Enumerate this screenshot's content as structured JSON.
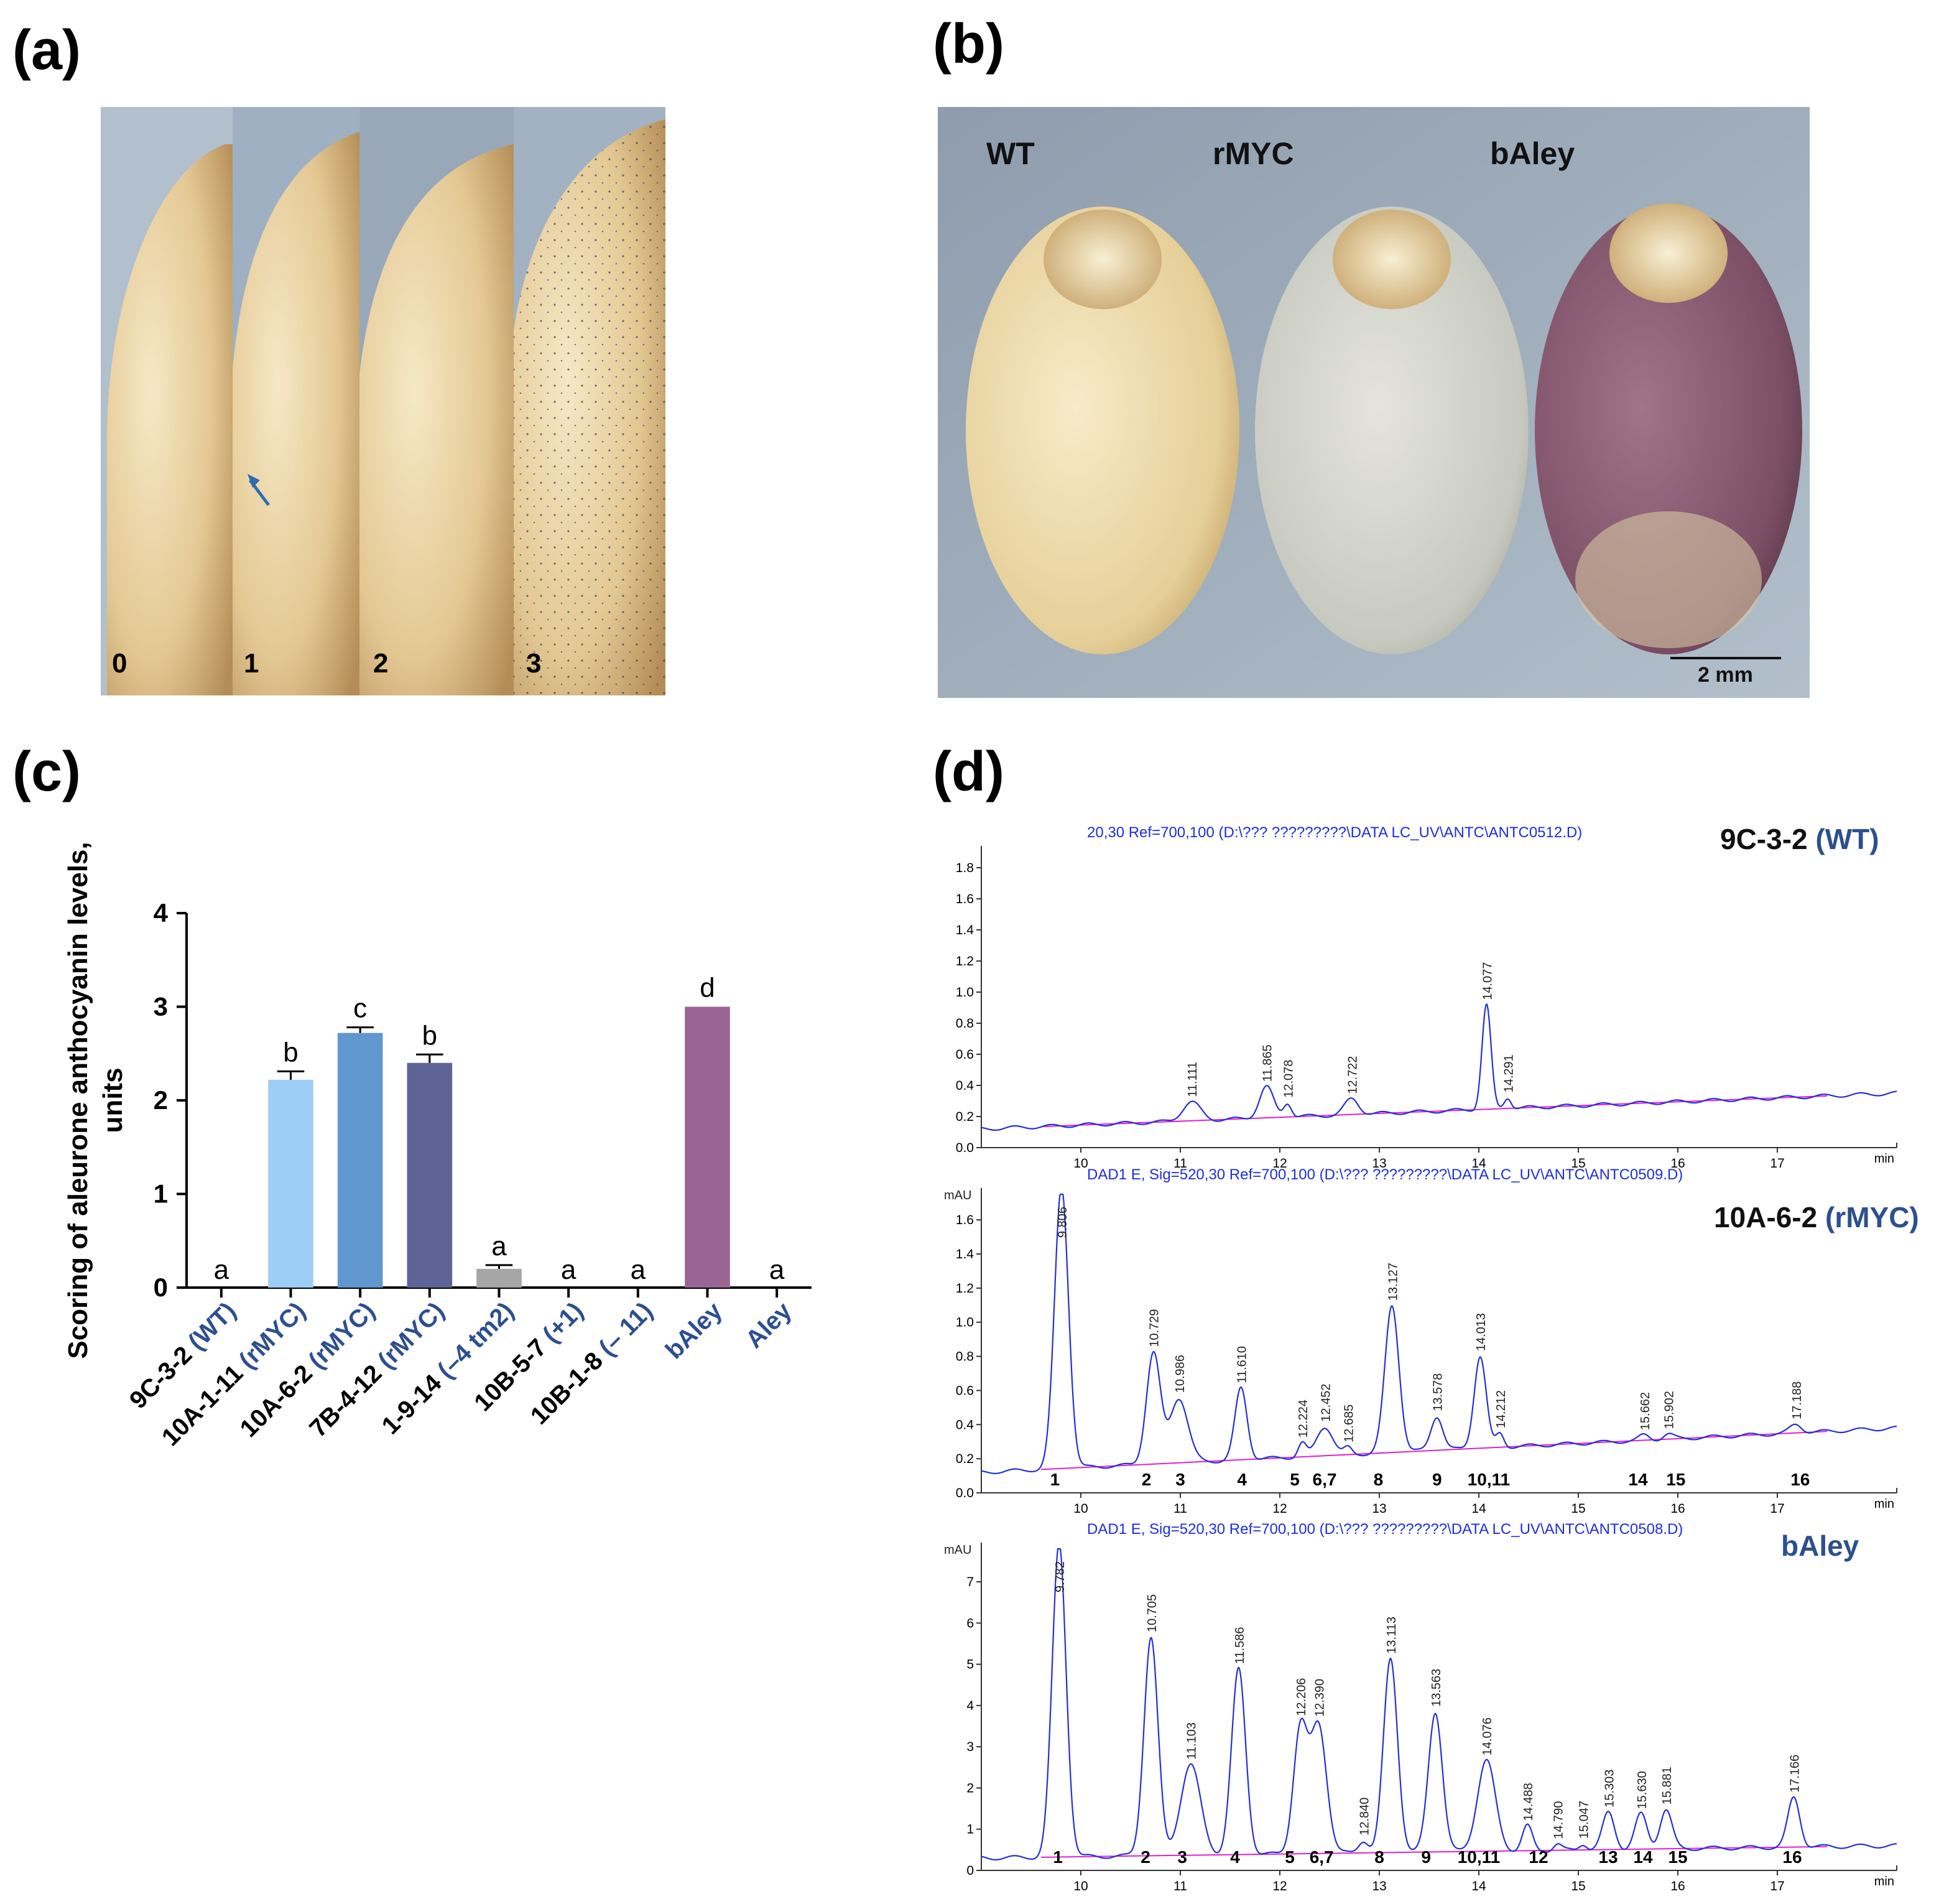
{
  "panels": {
    "a": "(a)",
    "b": "(b)",
    "c": "(c)",
    "d": "(d)"
  },
  "panel_a": {
    "strip_labels": [
      "0",
      "1",
      "2",
      "3"
    ]
  },
  "panel_b": {
    "seed_labels": [
      "WT",
      "rMYC",
      "bAley"
    ],
    "scale_label": "2 mm"
  },
  "chart_data": [
    {
      "type": "bar",
      "panel": "c",
      "title": "",
      "ylabel": "Scoring of aleurone anthocyanin levels, units",
      "ylim": [
        0,
        4
      ],
      "yticks": [
        "0",
        "1",
        "2",
        "3",
        "4"
      ],
      "categories": [
        {
          "id": "9C-3-2",
          "tag": "(WT)"
        },
        {
          "id": "10A-1-11",
          "tag": "(rMYC)"
        },
        {
          "id": "10A-6-2",
          "tag": "(rMYC)"
        },
        {
          "id": "7B-4-12",
          "tag": "(rMYC)"
        },
        {
          "id": "1-9-14",
          "tag": "(–4 tm2)"
        },
        {
          "id": "10B-5-7",
          "tag": "(+1)"
        },
        {
          "id": "10B-1-8",
          "tag": "(– 11)"
        },
        {
          "id": "",
          "tag": "bAley"
        },
        {
          "id": "",
          "tag": "Aley"
        }
      ],
      "values": [
        0,
        2.22,
        2.72,
        2.4,
        0.2,
        0,
        0,
        3.0,
        0
      ],
      "errors": [
        0,
        0.09,
        0.06,
        0.09,
        0.04,
        0,
        0,
        0,
        0
      ],
      "letters": [
        "a",
        "b",
        "c",
        "b",
        "a",
        "a",
        "a",
        "d",
        "a"
      ],
      "colors": [
        "#ffffff",
        "#9ecdf5",
        "#6197cf",
        "#5f6497",
        "#a6a6a6",
        "#ffffff",
        "#ffffff",
        "#9a6595",
        "#ffffff"
      ]
    },
    {
      "type": "line",
      "panel": "d",
      "header": "20,30 Ref=700,100 (D:\\??? ?????????\\DATA  LC_UV\\ANTC\\ANTC0512.D)",
      "sample": "9C-3-2",
      "sample_tag": "(WT)",
      "unit": "",
      "xlim": [
        9,
        18.2
      ],
      "ylim": [
        0,
        1.9
      ],
      "xticks": [
        "10",
        "11",
        "12",
        "13",
        "14",
        "15",
        "16",
        "17",
        "min"
      ],
      "yticks": [
        "0.0",
        "0.2",
        "0.4",
        "0.6",
        "0.8",
        "1.0",
        "1.2",
        "1.4",
        "1.6",
        "1.8"
      ],
      "baseline": [
        [
          9,
          0.12
        ],
        [
          18.2,
          0.35
        ]
      ],
      "peaks": [
        {
          "t": 11.111,
          "h": 0.12,
          "w": 0.09
        },
        {
          "t": 11.865,
          "h": 0.2,
          "w": 0.07
        },
        {
          "t": 12.078,
          "h": 0.09,
          "w": 0.04
        },
        {
          "t": 12.722,
          "h": 0.1,
          "w": 0.07
        },
        {
          "t": 14.077,
          "h": 0.67,
          "w": 0.045
        },
        {
          "t": 14.291,
          "h": 0.07,
          "w": 0.035
        }
      ],
      "peak_labels": [
        "11.111",
        "11.865",
        "12.078",
        "12.722",
        "14.077",
        "14.291"
      ],
      "numbers": []
    },
    {
      "type": "line",
      "panel": "d",
      "header": "DAD1 E, Sig=520,30 Ref=700,100 (D:\\??? ?????????\\DATA  LC_UV\\ANTC\\ANTC0509.D)",
      "sample": "10A-6-2",
      "sample_tag": "(rMYC)",
      "unit": "mAU",
      "xlim": [
        9,
        18.2
      ],
      "ylim": [
        0,
        1.75
      ],
      "xticks": [
        "10",
        "11",
        "12",
        "13",
        "14",
        "15",
        "16",
        "17",
        "min"
      ],
      "yticks": [
        "0.0",
        "0.2",
        "0.4",
        "0.6",
        "0.8",
        "1.0",
        "1.2",
        "1.4",
        "1.6"
      ],
      "baseline": [
        [
          9,
          0.12
        ],
        [
          18.2,
          0.38
        ]
      ],
      "peaks": [
        {
          "t": 9.806,
          "h": 1.65,
          "w": 0.07
        },
        {
          "t": 10.729,
          "h": 0.65,
          "w": 0.07
        },
        {
          "t": 10.986,
          "h": 0.38,
          "w": 0.09
        },
        {
          "t": 11.61,
          "h": 0.42,
          "w": 0.06
        },
        {
          "t": 12.224,
          "h": 0.08,
          "w": 0.04
        },
        {
          "t": 12.452,
          "h": 0.17,
          "w": 0.08
        },
        {
          "t": 12.685,
          "h": 0.04,
          "w": 0.04
        },
        {
          "t": 13.127,
          "h": 0.86,
          "w": 0.07
        },
        {
          "t": 13.578,
          "h": 0.2,
          "w": 0.06
        },
        {
          "t": 14.013,
          "h": 0.54,
          "w": 0.06
        },
        {
          "t": 14.212,
          "h": 0.08,
          "w": 0.04
        },
        {
          "t": 15.662,
          "h": 0.03,
          "w": 0.05
        },
        {
          "t": 15.902,
          "h": 0.03,
          "w": 0.05
        },
        {
          "t": 17.188,
          "h": 0.05,
          "w": 0.06
        }
      ],
      "peak_labels": [
        "9.806",
        "10.729",
        "10.986",
        "11.610",
        "12.224",
        "12.452",
        "12.685",
        "13.127",
        "13.578",
        "14.013",
        "14.212",
        "15.662",
        "15.902",
        "17.188"
      ],
      "numbers": [
        {
          "t": 9.74,
          "label": "1"
        },
        {
          "t": 10.66,
          "label": "2"
        },
        {
          "t": 11.0,
          "label": "3"
        },
        {
          "t": 11.62,
          "label": "4"
        },
        {
          "t": 12.15,
          "label": "5"
        },
        {
          "t": 12.45,
          "label": "6,7"
        },
        {
          "t": 12.99,
          "label": "8"
        },
        {
          "t": 13.58,
          "label": "9"
        },
        {
          "t": 14.1,
          "label": "10,11"
        },
        {
          "t": 15.6,
          "label": "14"
        },
        {
          "t": 15.98,
          "label": "15"
        },
        {
          "t": 17.23,
          "label": "16"
        }
      ]
    },
    {
      "type": "line",
      "panel": "d",
      "header": "DAD1 E, Sig=520,30 Ref=700,100 (D:\\??? ?????????\\DATA  LC_UV\\ANTC\\ANTC0508.D)",
      "sample": "bAley",
      "sample_tag": "",
      "unit": "mAU",
      "xlim": [
        9,
        18.2
      ],
      "ylim": [
        0,
        7.8
      ],
      "xticks": [
        "10",
        "11",
        "12",
        "13",
        "14",
        "15",
        "16",
        "17",
        "min"
      ],
      "yticks": [
        "0",
        "1",
        "2",
        "3",
        "4",
        "5",
        "6",
        "7"
      ],
      "baseline": [
        [
          9,
          0.3
        ],
        [
          18.2,
          0.6
        ]
      ],
      "peaks": [
        {
          "t": 9.782,
          "h": 7.6,
          "w": 0.07
        },
        {
          "t": 10.705,
          "h": 5.3,
          "w": 0.07
        },
        {
          "t": 11.103,
          "h": 2.2,
          "w": 0.1
        },
        {
          "t": 11.586,
          "h": 4.5,
          "w": 0.07
        },
        {
          "t": 12.206,
          "h": 3.0,
          "w": 0.07
        },
        {
          "t": 12.39,
          "h": 3.1,
          "w": 0.08
        },
        {
          "t": 12.84,
          "h": 0.3,
          "w": 0.05
        },
        {
          "t": 13.113,
          "h": 4.7,
          "w": 0.07
        },
        {
          "t": 13.563,
          "h": 3.4,
          "w": 0.07
        },
        {
          "t": 14.076,
          "h": 2.2,
          "w": 0.09
        },
        {
          "t": 14.488,
          "h": 0.6,
          "w": 0.05
        },
        {
          "t": 14.79,
          "h": 0.15,
          "w": 0.04
        },
        {
          "t": 15.047,
          "h": 0.15,
          "w": 0.04
        },
        {
          "t": 15.303,
          "h": 0.9,
          "w": 0.06
        },
        {
          "t": 15.63,
          "h": 0.85,
          "w": 0.06
        },
        {
          "t": 15.881,
          "h": 0.95,
          "w": 0.06
        },
        {
          "t": 17.166,
          "h": 1.2,
          "w": 0.06
        }
      ],
      "peak_labels": [
        "9.782",
        "10.705",
        "11.103",
        "11.586",
        "12.206",
        "12.390",
        "12.840",
        "13.113",
        "13.563",
        "14.076",
        "14.488",
        "14.790",
        "15.047",
        "15.303",
        "15.630",
        "15.881",
        "17.166"
      ],
      "numbers": [
        {
          "t": 9.77,
          "label": "1"
        },
        {
          "t": 10.65,
          "label": "2"
        },
        {
          "t": 11.02,
          "label": "3"
        },
        {
          "t": 11.55,
          "label": "4"
        },
        {
          "t": 12.1,
          "label": "5"
        },
        {
          "t": 12.42,
          "label": "6,7"
        },
        {
          "t": 13.0,
          "label": "8"
        },
        {
          "t": 13.47,
          "label": "9"
        },
        {
          "t": 14.0,
          "label": "10,11"
        },
        {
          "t": 14.6,
          "label": "12"
        },
        {
          "t": 15.3,
          "label": "13"
        },
        {
          "t": 15.65,
          "label": "14"
        },
        {
          "t": 16.0,
          "label": "15"
        },
        {
          "t": 17.15,
          "label": "16"
        }
      ]
    }
  ]
}
